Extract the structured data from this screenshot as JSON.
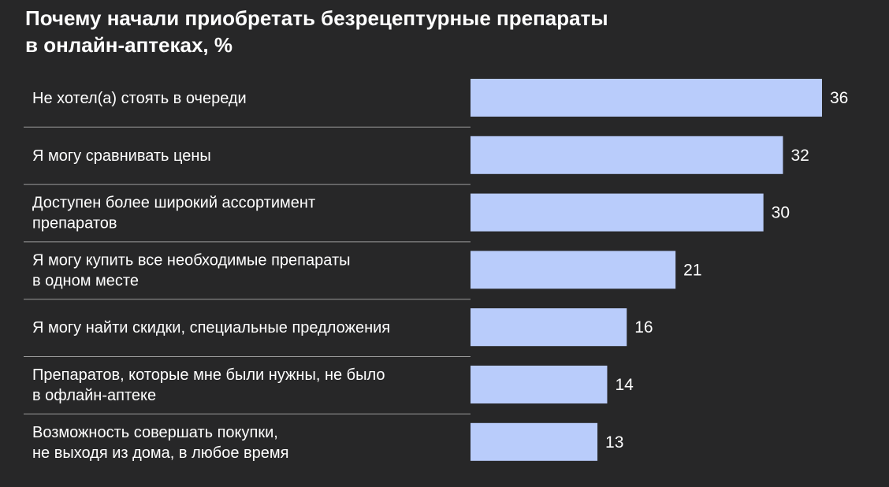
{
  "title": {
    "line1": "Почему начали приобретать безрецептурные препараты",
    "line2": "в онлайн-аптеках, %"
  },
  "colors": {
    "background": "#272728",
    "bar": "#b9ccfb",
    "separator": "#9a9a9a",
    "text": "#ffffff"
  },
  "chart_data": {
    "type": "bar",
    "orientation": "horizontal",
    "title": "Почему начали приобретать безрецептурные препараты в онлайн-аптеках, %",
    "categories": [
      [
        "Не хотел(а) стоять в очереди"
      ],
      [
        "Я могу сравнивать цены"
      ],
      [
        "Доступен более широкий ассортимент",
        "препаратов"
      ],
      [
        "Я могу купить все необходимые препараты",
        "в одном месте"
      ],
      [
        "Я могу найти скидки, специальные предложения"
      ],
      [
        "Препаратов, которые мне были нужны, не было",
        "в офлайн-аптеке"
      ],
      [
        "Возможность совершать покупки,",
        "не выходя из дома, в любое время"
      ]
    ],
    "values": [
      36,
      32,
      30,
      21,
      16,
      14,
      13
    ],
    "xlim": [
      0,
      36
    ],
    "grid": false,
    "legend": "none"
  }
}
